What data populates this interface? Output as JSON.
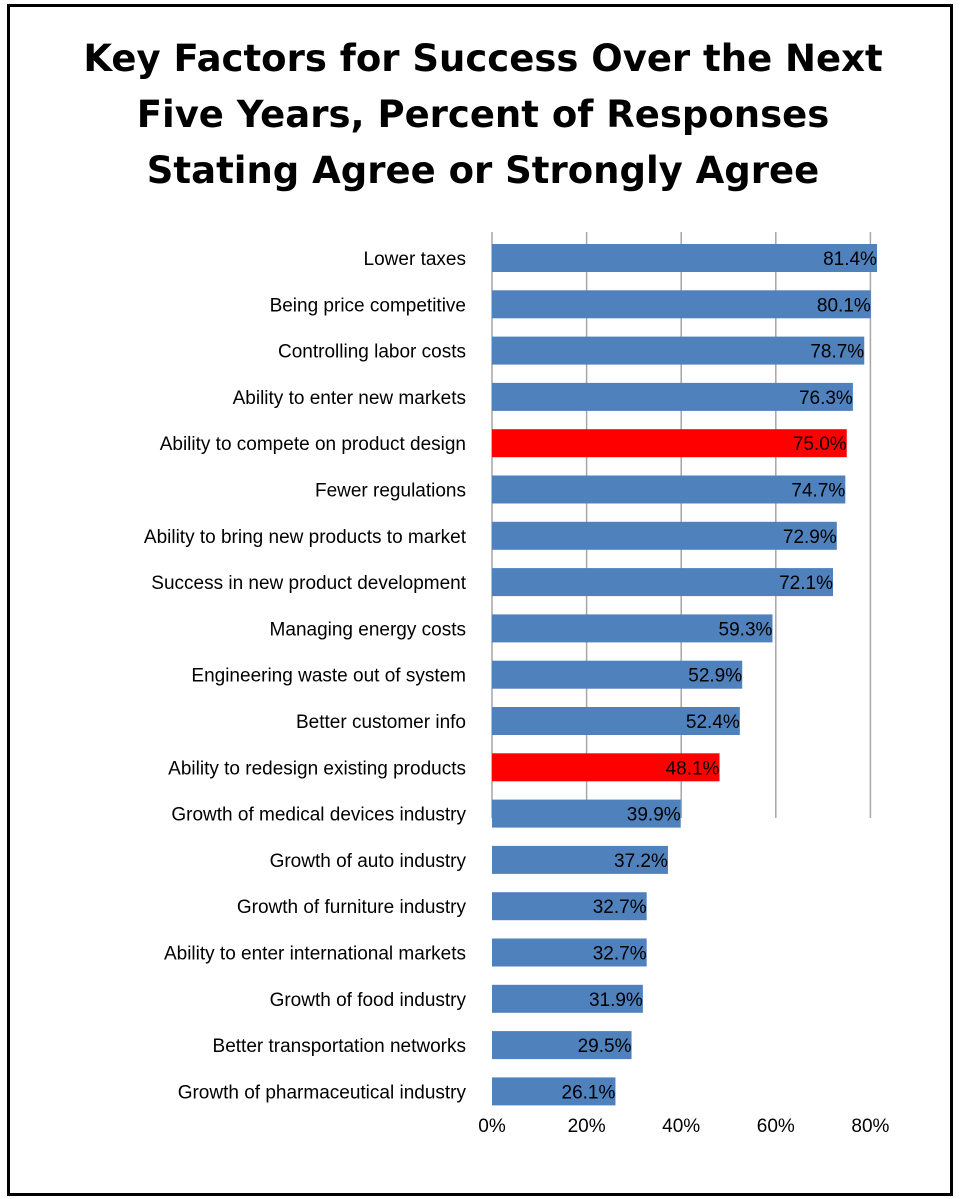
{
  "chart_data": {
    "type": "bar",
    "orientation": "horizontal",
    "title": "Key Factors for Success Over the Next\nFive Years, Percent of Responses\nStating Agree or Strongly Agree",
    "categories": [
      "Lower taxes",
      "Being price competitive",
      "Controlling labor costs",
      "Ability to enter new markets",
      "Ability to compete on product design",
      "Fewer regulations",
      "Ability to bring new products to market",
      "Success in new product development",
      "Managing energy costs",
      "Engineering waste out of system",
      "Better customer info",
      "Ability to redesign existing products",
      "Growth of medical devices industry",
      "Growth of auto industry",
      "Growth of furniture industry",
      "Ability to enter international markets",
      "Growth of food industry",
      "Better transportation networks",
      "Growth of pharmaceutical industry"
    ],
    "values": [
      81.4,
      80.1,
      78.7,
      76.3,
      75.0,
      74.7,
      72.9,
      72.1,
      59.3,
      52.9,
      52.4,
      48.1,
      39.9,
      37.2,
      32.7,
      32.7,
      31.9,
      29.5,
      26.1
    ],
    "value_labels": [
      "81.4%",
      "80.1%",
      "78.7%",
      "76.3%",
      "75.0%",
      "74.7%",
      "72.9%",
      "72.1%",
      "59.3%",
      "52.9%",
      "52.4%",
      "48.1%",
      "39.9%",
      "37.2%",
      "32.7%",
      "32.7%",
      "31.9%",
      "29.5%",
      "26.1%"
    ],
    "highlighted": [
      false,
      false,
      false,
      false,
      true,
      false,
      false,
      false,
      false,
      false,
      false,
      true,
      false,
      false,
      false,
      false,
      false,
      false,
      false
    ],
    "xlim": [
      0,
      80
    ],
    "x_ticks": [
      0,
      20,
      40,
      60,
      80
    ],
    "x_tick_labels": [
      "0%",
      "20%",
      "40%",
      "60%",
      "80%"
    ],
    "grid": true,
    "legend": "none",
    "colors": {
      "bar": "#4F81BD",
      "highlight": "#FF0000",
      "gridline": "#A6A6A6"
    }
  }
}
